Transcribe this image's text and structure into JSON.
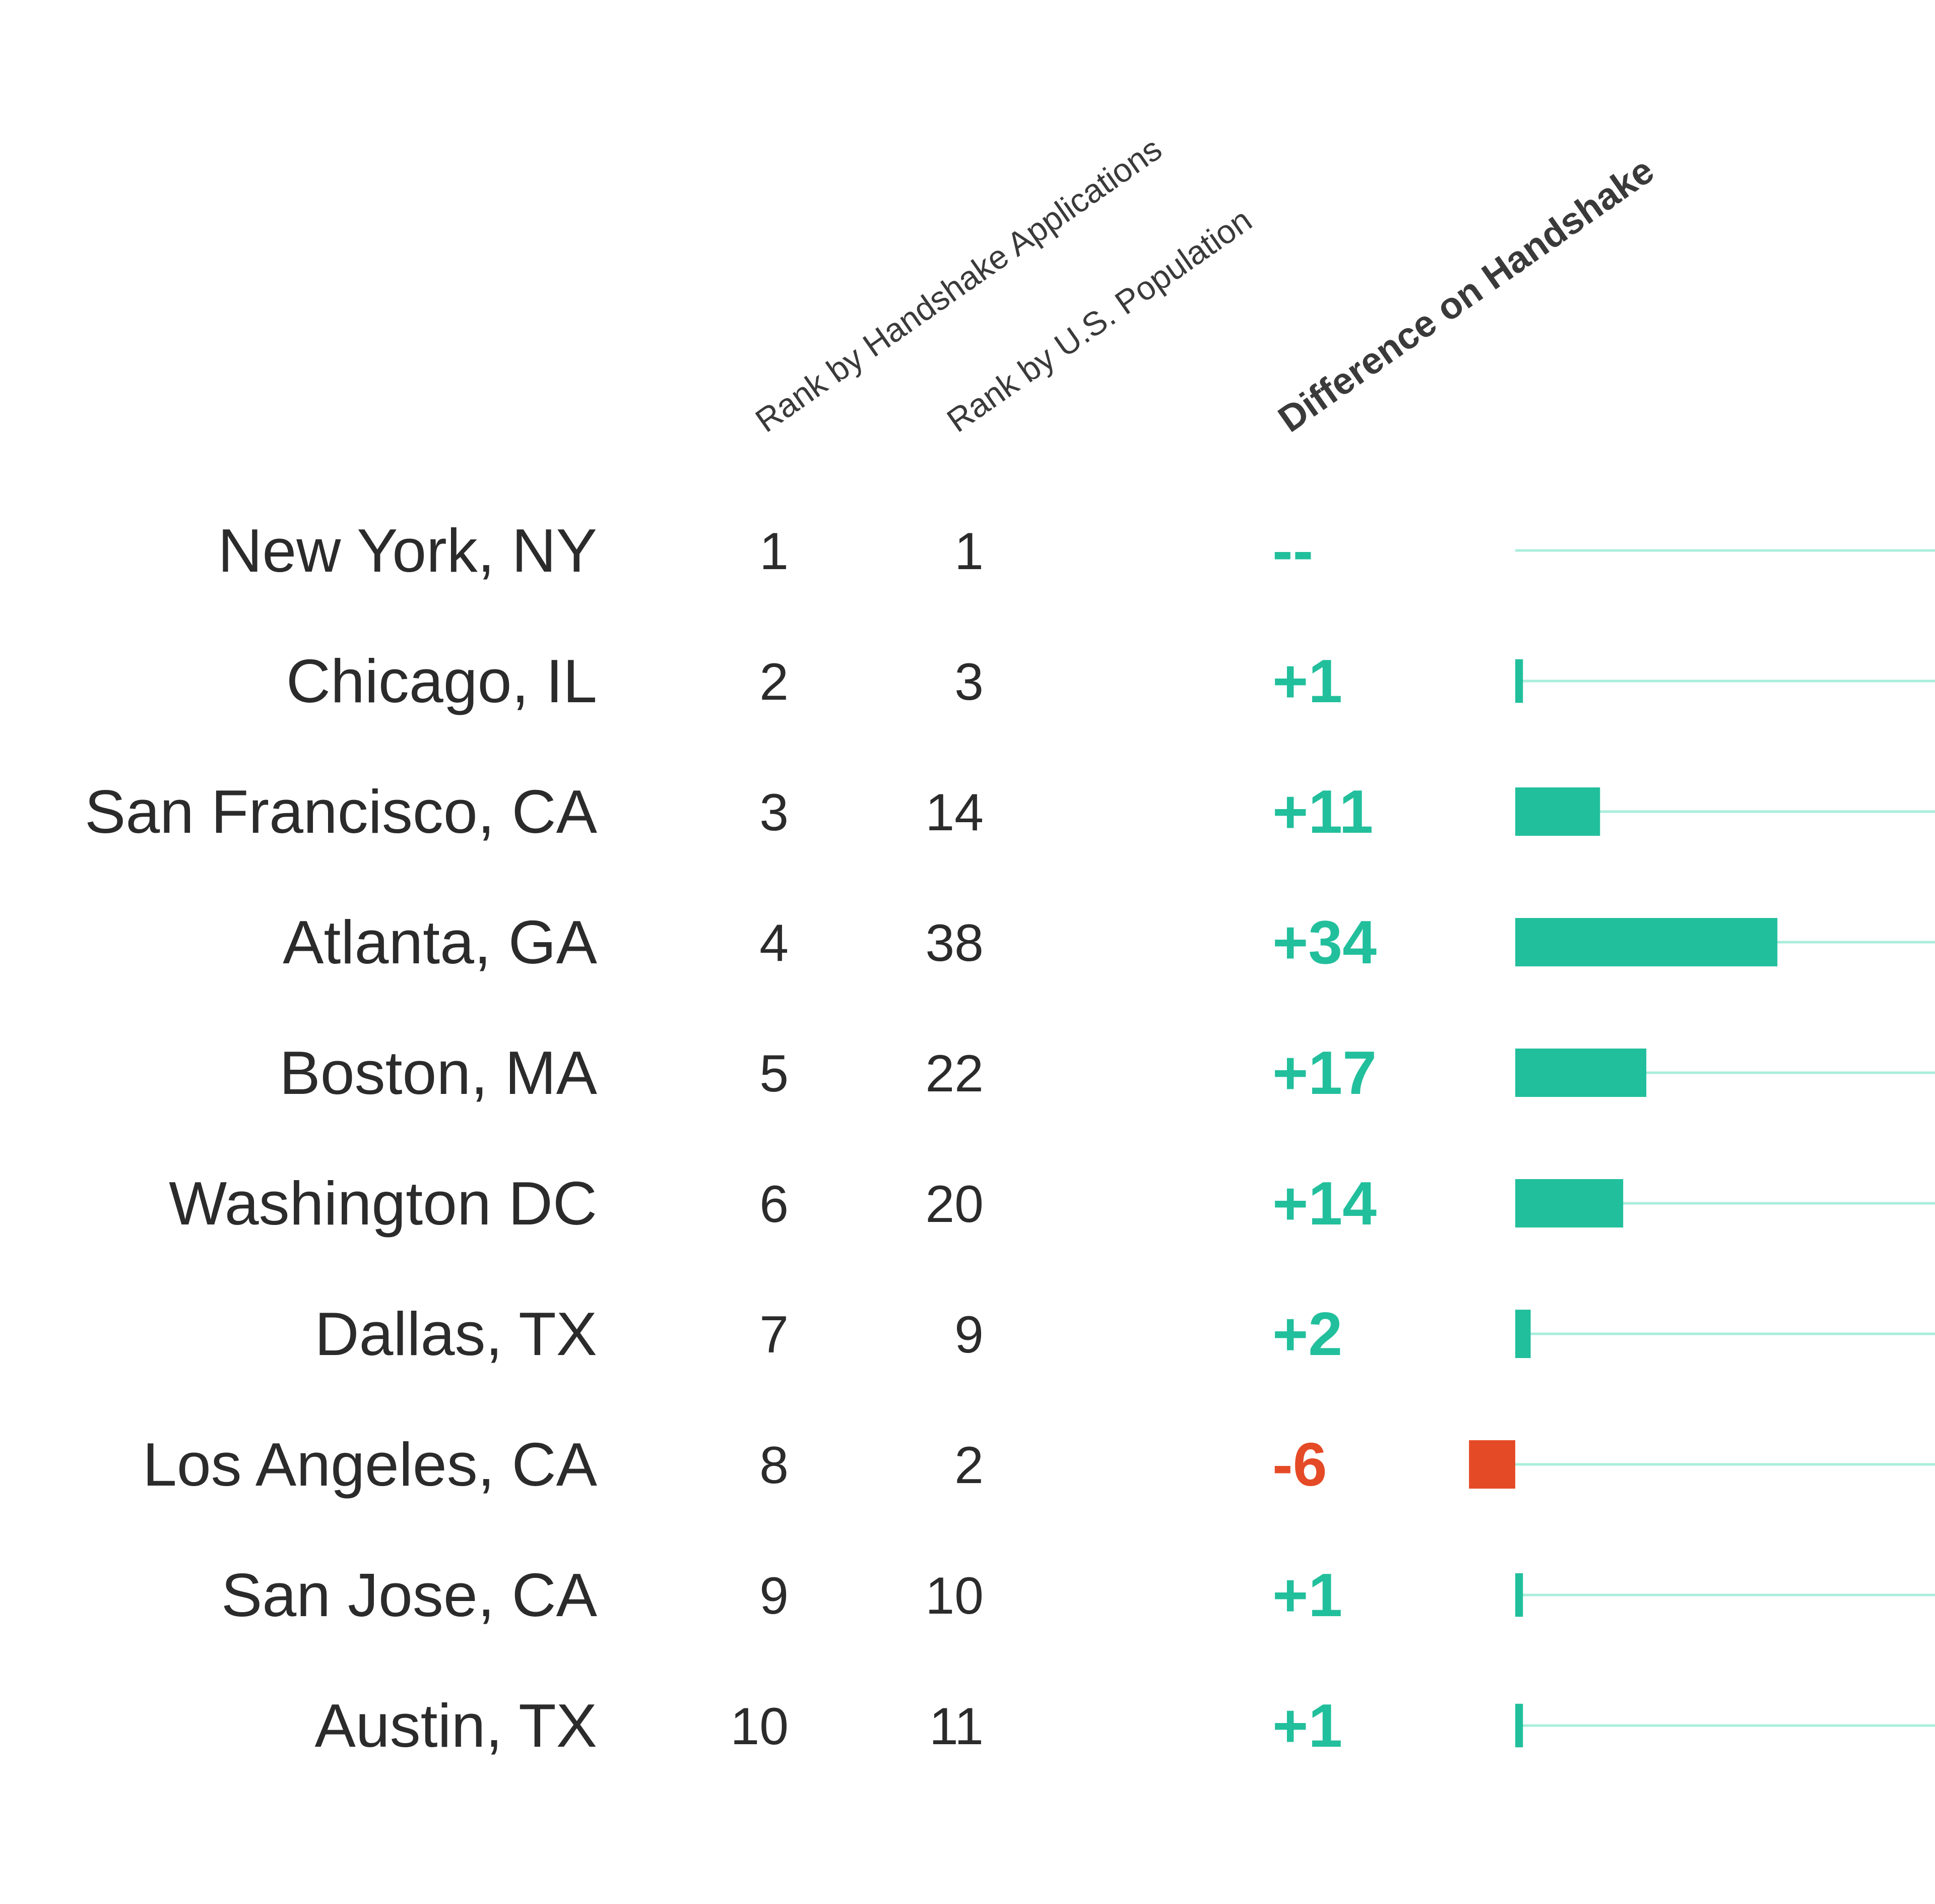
{
  "colors": {
    "positive": "#22bf9c",
    "negative": "#e54a26",
    "baseline": "#a8eedb",
    "text": "#2b2b2b"
  },
  "chart_data": {
    "type": "bar",
    "columns": {
      "handshake_rank": "Rank by Handshake Applications",
      "population_rank": "Rank by U.S. Population",
      "difference": "Difference on Handshake"
    },
    "categories": [
      "New York, NY",
      "Chicago, IL",
      "San Francisco, CA",
      "Atlanta, GA",
      "Boston, MA",
      "Washington DC",
      "Dallas, TX",
      "Los Angeles, CA",
      "San Jose, CA",
      "Austin, TX"
    ],
    "rows": [
      {
        "city": "New York, NY",
        "handshake_rank": "1",
        "population_rank": "1",
        "difference": 0,
        "difference_label": "--"
      },
      {
        "city": "Chicago, IL",
        "handshake_rank": "2",
        "population_rank": "3",
        "difference": 1,
        "difference_label": "+1"
      },
      {
        "city": "San Francisco, CA",
        "handshake_rank": "3",
        "population_rank": "14",
        "difference": 11,
        "difference_label": "+11"
      },
      {
        "city": "Atlanta, GA",
        "handshake_rank": "4",
        "population_rank": "38",
        "difference": 34,
        "difference_label": "+34"
      },
      {
        "city": "Boston, MA",
        "handshake_rank": "5",
        "population_rank": "22",
        "difference": 17,
        "difference_label": "+17"
      },
      {
        "city": "Washington DC",
        "handshake_rank": "6",
        "population_rank": "20",
        "difference": 14,
        "difference_label": "+14"
      },
      {
        "city": "Dallas, TX",
        "handshake_rank": "7",
        "population_rank": "9",
        "difference": 2,
        "difference_label": "+2"
      },
      {
        "city": "Los Angeles, CA",
        "handshake_rank": "8",
        "population_rank": "2",
        "difference": -6,
        "difference_label": "-6"
      },
      {
        "city": "San Jose, CA",
        "handshake_rank": "9",
        "population_rank": "10",
        "difference": 1,
        "difference_label": "+1"
      },
      {
        "city": "Austin, TX",
        "handshake_rank": "10",
        "population_rank": "11",
        "difference": 1,
        "difference_label": "+1"
      }
    ],
    "grid": false,
    "legend": "none"
  }
}
